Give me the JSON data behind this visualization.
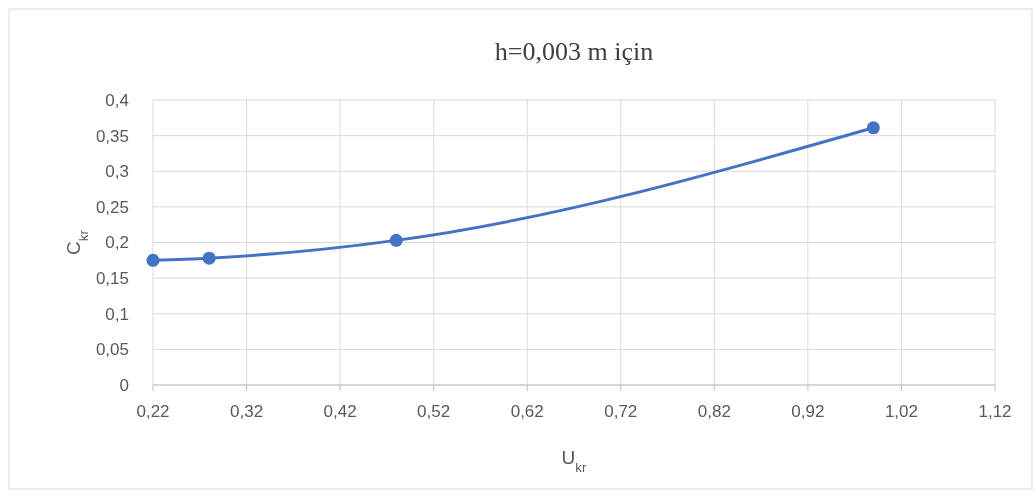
{
  "chart_data": {
    "type": "line",
    "title": "h=0,003 m için",
    "xlabel": "U$_{kr}$",
    "ylabel": "C$_{kr}$",
    "x": [
      0.22,
      0.28,
      0.48,
      0.99
    ],
    "series": [
      {
        "color": "#4472c4",
        "values": [
          0.175,
          0.178,
          0.203,
          0.361
        ]
      }
    ],
    "xlim": [
      0.22,
      1.12
    ],
    "xticks": [
      {
        "value": 0.22,
        "label": "0,22"
      },
      {
        "value": 0.32,
        "label": "0,32"
      },
      {
        "value": 0.42,
        "label": "0,42"
      },
      {
        "value": 0.52,
        "label": "0,52"
      },
      {
        "value": 0.62,
        "label": "0,62"
      },
      {
        "value": 0.72,
        "label": "0,72"
      },
      {
        "value": 0.82,
        "label": "0,82"
      },
      {
        "value": 0.92,
        "label": "0,92"
      },
      {
        "value": 1.02,
        "label": "1,02"
      },
      {
        "value": 1.12,
        "label": "1,12"
      }
    ],
    "ylim": [
      0,
      0.4
    ],
    "yticks": [
      0,
      {
        "value": 0.05,
        "label": "0,05"
      },
      {
        "value": 0.1,
        "label": "0,1"
      },
      {
        "value": 0.15,
        "label": "0,15"
      },
      {
        "value": 0.2,
        "label": "0,2"
      },
      {
        "value": 0.25,
        "label": "0,25"
      },
      {
        "value": 0.3,
        "label": "0,3"
      },
      {
        "value": 0.35,
        "label": "0,35"
      },
      {
        "value": 0.4,
        "label": "0,4"
      }
    ],
    "grid": true,
    "marker": "circle",
    "line_style": "solid"
  }
}
